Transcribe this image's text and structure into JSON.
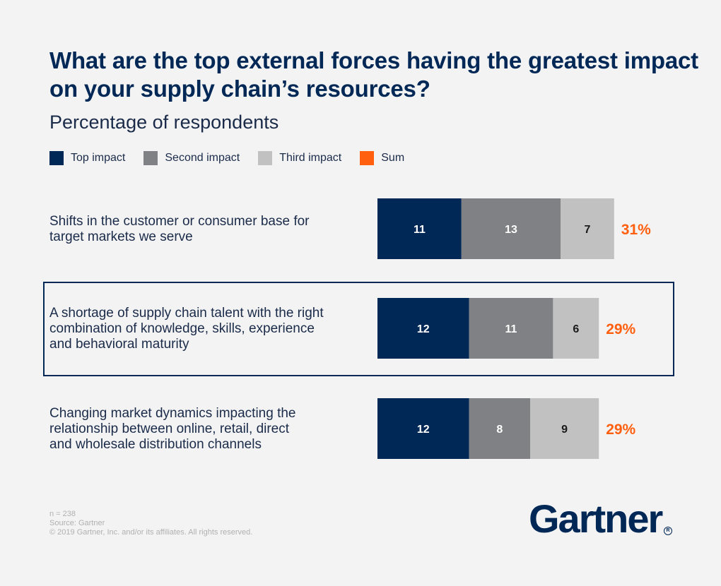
{
  "chart_data": {
    "type": "bar",
    "orientation": "horizontal",
    "stacked": true,
    "title": "What are the top external forces having the greatest impact on your supply chain’s resources?",
    "subtitle": "Percentage of respondents",
    "legend_position": "top-left",
    "categories": [
      [
        "Shifts in the customer or consumer base for",
        "target markets we serve"
      ],
      [
        "A shortage of supply chain talent with the right",
        "combination of knowledge, skills, experience",
        "and behavioral maturity"
      ],
      [
        "Changing market dynamics impacting the",
        "relationship between online, retail, direct",
        "and wholesale distribution channels"
      ]
    ],
    "series": [
      {
        "name": "Top impact",
        "values": [
          11,
          12,
          12
        ],
        "color": "#002856"
      },
      {
        "name": "Second impact",
        "values": [
          13,
          11,
          8
        ],
        "color": "#808184"
      },
      {
        "name": "Third impact",
        "values": [
          7,
          6,
          9
        ],
        "color": "#c1c1c1"
      }
    ],
    "sum": {
      "name": "Sum",
      "values": [
        "31%",
        "29%",
        "29%"
      ],
      "color": "#ff5f0f"
    },
    "highlighted_category_index": 1,
    "grid": false
  },
  "footnote": {
    "n": "n = 238",
    "source": "Source: Gartner",
    "copyright": "© 2019 Gartner, Inc. and/or its affiliates. All rights reserved."
  },
  "logo": {
    "text": "Gartner",
    "registered": "R"
  }
}
